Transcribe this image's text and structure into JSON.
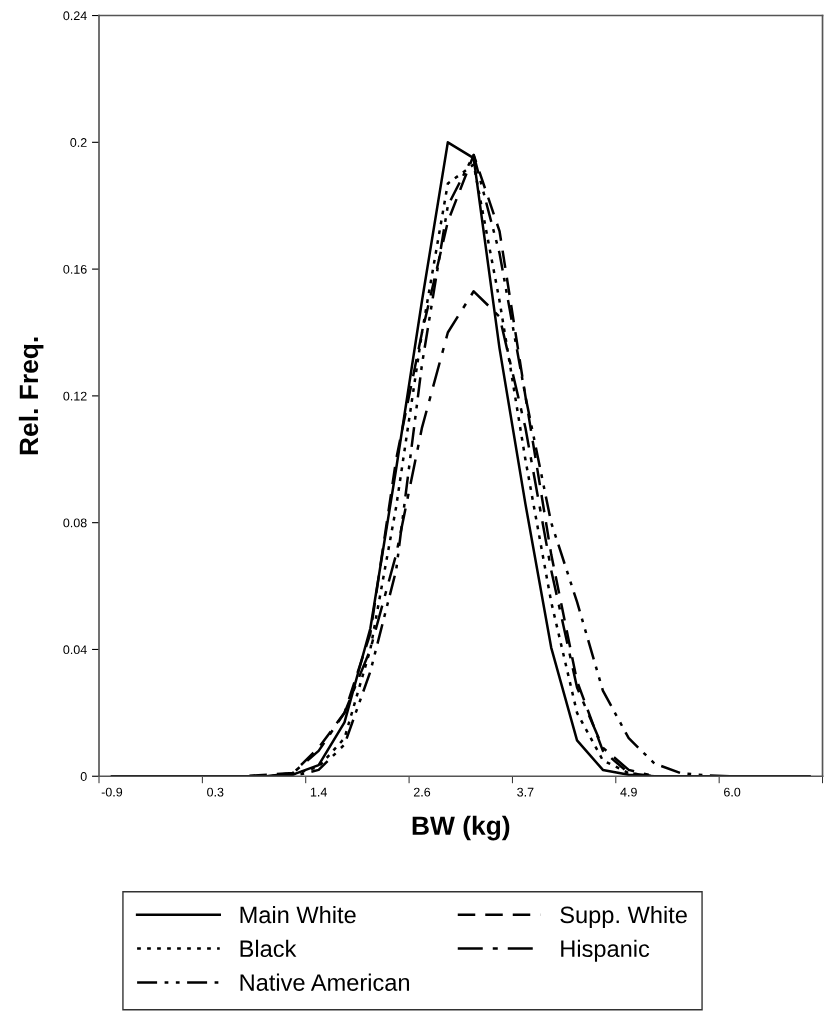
{
  "chart_data": {
    "type": "line",
    "xlabel": "BW (kg)",
    "ylabel": "Rel. Freq.",
    "categories": [
      "-0.9",
      null,
      null,
      null,
      "0.3",
      null,
      null,
      null,
      "1.4",
      null,
      null,
      null,
      "2.6",
      null,
      null,
      null,
      "3.7",
      null,
      null,
      null,
      "4.9",
      null,
      null,
      null,
      "6.0",
      null,
      null,
      null
    ],
    "ylim": [
      0,
      0.24
    ],
    "yticks": [
      0,
      0.04,
      0.08,
      0.12,
      0.16,
      0.2,
      0.24
    ],
    "grid": false,
    "legend": "bottom",
    "marker": "none",
    "series": [
      {
        "name": "Main White",
        "color": "#000000",
        "line_style": "solid",
        "values": [
          0,
          0,
          0,
          0,
          0,
          0,
          0,
          0.0005,
          0.0035,
          0.017,
          0.0466,
          0.097,
          0.15,
          0.2,
          0.195,
          0.135,
          0.086,
          0.0406,
          0.0113,
          0.002,
          0.0005,
          0,
          0,
          0,
          0,
          0,
          0,
          0
        ]
      },
      {
        "name": "Supp. White",
        "color": "#000000",
        "line_style": "dashed",
        "values": [
          0,
          0,
          0,
          0,
          0,
          0,
          0.0005,
          0.001,
          0.009,
          0.02,
          0.045,
          0.1,
          0.14,
          0.175,
          0.196,
          0.172,
          0.12,
          0.07,
          0.03,
          0.008,
          0.001,
          0,
          0,
          0,
          0,
          0,
          0,
          0
        ]
      },
      {
        "name": "Black",
        "color": "#000000",
        "line_style": "dotted",
        "values": [
          0,
          0,
          0,
          0,
          0,
          0,
          0,
          0.0005,
          0.003,
          0.012,
          0.04,
          0.085,
          0.14,
          0.187,
          0.193,
          0.15,
          0.1,
          0.055,
          0.02,
          0.005,
          0.001,
          0,
          0,
          0,
          0,
          0,
          0,
          0
        ]
      },
      {
        "name": "Hispanic",
        "color": "#000000",
        "line_style": "dashdot",
        "values": [
          0,
          0,
          0,
          0,
          0,
          0,
          0,
          0.001,
          0.008,
          0.02,
          0.04,
          0.07,
          0.11,
          0.14,
          0.153,
          0.145,
          0.11,
          0.065,
          0.028,
          0.009,
          0.002,
          0,
          0,
          0,
          0,
          0,
          0,
          0
        ]
      },
      {
        "name": "Native American",
        "color": "#000000",
        "line_style": "dashdotdot",
        "values": [
          0,
          0,
          0,
          0,
          0,
          0,
          0,
          0,
          0.002,
          0.01,
          0.033,
          0.065,
          0.13,
          0.18,
          0.196,
          0.165,
          0.12,
          0.08,
          0.055,
          0.027,
          0.012,
          0.004,
          0.001,
          0.0003,
          0,
          0,
          0,
          0
        ]
      }
    ]
  }
}
